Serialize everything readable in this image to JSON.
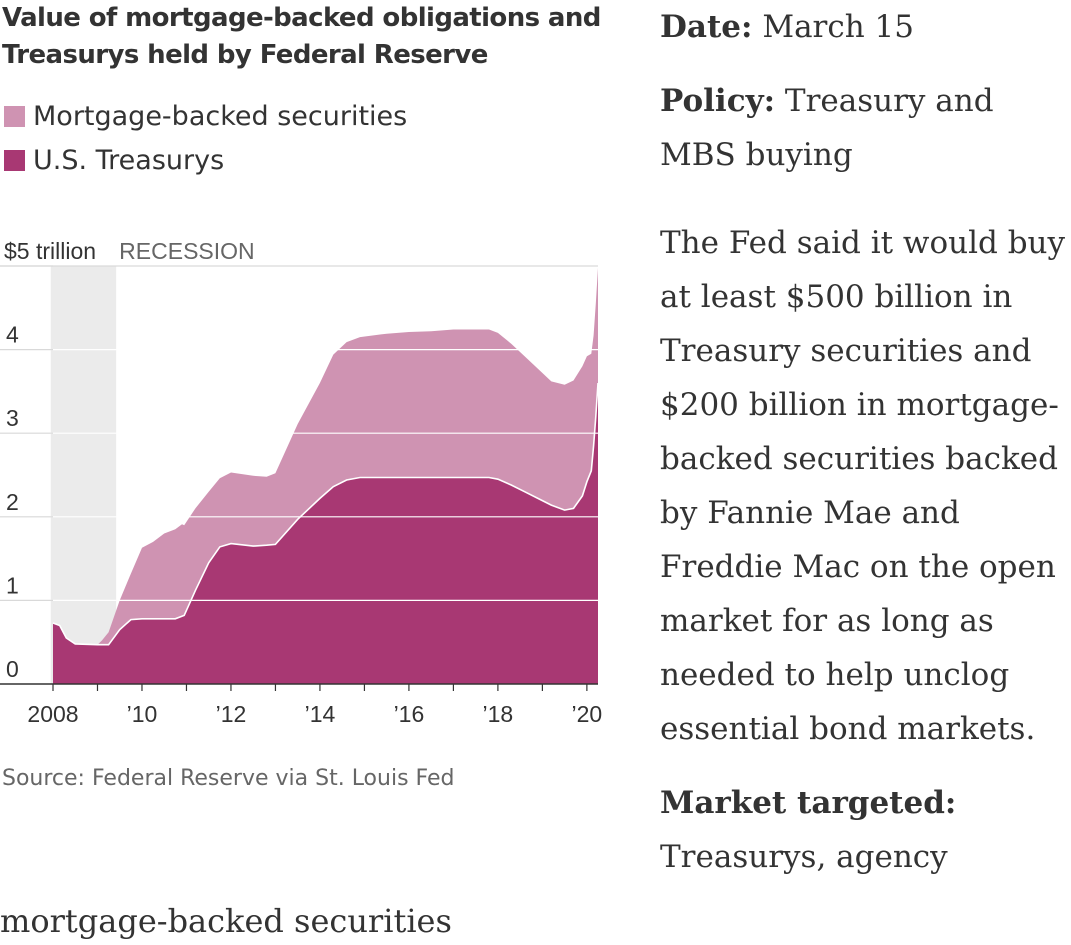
{
  "chart_data": {
    "type": "area",
    "title": "Value of mortgage-backed obligations and Treasurys held by Federal Reserve",
    "y_unit_label": "$5 trillion",
    "ylim": [
      0,
      5
    ],
    "y_ticks": [
      {
        "value": 0,
        "label": "0"
      },
      {
        "value": 1,
        "label": "1"
      },
      {
        "value": 2,
        "label": "2"
      },
      {
        "value": 3,
        "label": "3"
      },
      {
        "value": 4,
        "label": "4"
      }
    ],
    "xlim": [
      2008.0,
      2020.25
    ],
    "x_ticks": [
      {
        "value": 2008,
        "label": "2008"
      },
      {
        "value": 2010,
        "label": "’10"
      },
      {
        "value": 2012,
        "label": "’12"
      },
      {
        "value": 2014,
        "label": "’14"
      },
      {
        "value": 2016,
        "label": "’16"
      },
      {
        "value": 2018,
        "label": "’18"
      },
      {
        "value": 2020,
        "label": "’20"
      }
    ],
    "recession": {
      "label": "RECESSION",
      "start": 2007.95,
      "end": 2009.42
    },
    "legend_placement": "top-left",
    "grid": true,
    "series": [
      {
        "name": "Mortgage-backed securities",
        "color": "#cf93b2",
        "stacked_on": "U.S. Treasurys",
        "x": [
          2008.0,
          2009.0,
          2009.1,
          2009.25,
          2009.5,
          2009.75,
          2010.0,
          2010.25,
          2010.5,
          2010.9,
          2011.2,
          2011.5,
          2011.75,
          2012.0,
          2012.5,
          2012.8,
          2013.0,
          2013.5,
          2014.0,
          2014.3,
          2014.6,
          2014.9,
          2015.5,
          2016.0,
          2016.5,
          2017.0,
          2017.5,
          2017.8,
          2018.0,
          2018.3,
          2018.6,
          2018.9,
          2019.2,
          2019.5,
          2019.7,
          2019.9,
          2020.0,
          2020.1,
          2020.15,
          2020.2,
          2020.25
        ],
        "values": [
          0,
          0,
          0.05,
          0.15,
          0.35,
          0.55,
          0.85,
          0.92,
          1.02,
          1.1,
          0.98,
          0.85,
          0.82,
          0.85,
          0.84,
          0.82,
          0.85,
          1.14,
          1.38,
          1.58,
          1.65,
          1.68,
          1.72,
          1.74,
          1.75,
          1.77,
          1.77,
          1.77,
          1.75,
          1.69,
          1.62,
          1.55,
          1.48,
          1.5,
          1.53,
          1.55,
          1.5,
          1.4,
          1.32,
          1.35,
          1.38
        ]
      },
      {
        "name": "U.S. Treasurys",
        "color": "#a83873",
        "x": [
          2008.0,
          2008.15,
          2008.3,
          2008.5,
          2009.0,
          2009.25,
          2009.5,
          2009.75,
          2010.0,
          2010.5,
          2010.75,
          2010.95,
          2011.2,
          2011.5,
          2011.75,
          2012.0,
          2012.5,
          2012.8,
          2013.0,
          2013.5,
          2014.0,
          2014.3,
          2014.6,
          2014.9,
          2015.5,
          2016.0,
          2016.5,
          2017.0,
          2017.5,
          2017.8,
          2018.0,
          2018.3,
          2018.6,
          2018.9,
          2019.2,
          2019.5,
          2019.7,
          2019.9,
          2020.0,
          2020.1,
          2020.15,
          2020.2,
          2020.25
        ],
        "values": [
          0.73,
          0.7,
          0.55,
          0.48,
          0.47,
          0.47,
          0.65,
          0.77,
          0.78,
          0.78,
          0.78,
          0.82,
          1.12,
          1.45,
          1.64,
          1.68,
          1.65,
          1.66,
          1.67,
          1.97,
          2.22,
          2.36,
          2.44,
          2.47,
          2.47,
          2.47,
          2.47,
          2.47,
          2.47,
          2.47,
          2.45,
          2.38,
          2.3,
          2.22,
          2.14,
          2.08,
          2.1,
          2.25,
          2.42,
          2.55,
          2.85,
          3.2,
          3.6
        ]
      }
    ]
  },
  "source": "Source: Federal Reserve via St. Louis Fed",
  "footer_text": "mortgage-backed securities",
  "side": {
    "date_label": "Date:",
    "date_value": "March 15",
    "policy_label": "Policy:",
    "policy_value": "Treasury and MBS buying",
    "description": "The Fed said it would buy at least $500 billion in Treasury securities and $200 billion in mortgage-backed securities backed by Fannie Mae and Freddie Mac on the open market for as long as needed to help unclog essential bond markets.",
    "market_label": "Market targeted:",
    "market_value": "Treasurys, agency"
  }
}
